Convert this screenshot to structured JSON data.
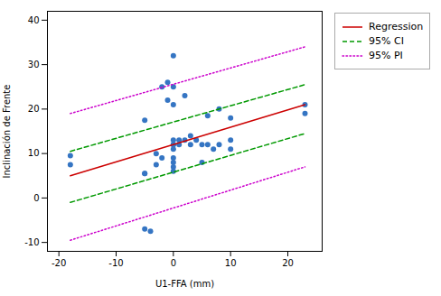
{
  "chart_data": {
    "type": "scatter",
    "xlabel": "U1-FFA (mm)",
    "ylabel": "Inclinación de Frente",
    "xlim": [
      -22,
      26
    ],
    "ylim": [
      -12,
      42
    ],
    "xticks": [
      -20,
      -10,
      0,
      10,
      20
    ],
    "yticks": [
      -10,
      0,
      10,
      20,
      30,
      40
    ],
    "grid": false,
    "legend": "right",
    "series": [
      {
        "type": "scatter",
        "marker": "o",
        "color": "#3575c3",
        "x": [
          -18,
          -18,
          -5,
          -5,
          -5,
          -5,
          -4,
          -3,
          -3,
          -2,
          -2,
          -1,
          -1,
          0,
          0,
          0,
          0,
          0,
          0,
          0,
          0,
          0,
          0,
          0,
          1,
          1,
          2,
          2,
          3,
          3,
          4,
          5,
          5,
          6,
          6,
          7,
          8,
          8,
          10,
          10,
          10,
          23,
          23
        ],
        "values": [
          9.5,
          7.5,
          17.5,
          5.5,
          5.5,
          -7,
          -7.5,
          10,
          7.5,
          9,
          25,
          26,
          22,
          13,
          12,
          12,
          11,
          9,
          8,
          7,
          6,
          32,
          25,
          21,
          13,
          12,
          23,
          13,
          14,
          12,
          13,
          12,
          8,
          18.5,
          12,
          11,
          20,
          12,
          18,
          13,
          11,
          21,
          19
        ]
      },
      {
        "name": "Regression",
        "type": "line",
        "line_style": "solid",
        "color": "#cc0000",
        "x": [
          -18,
          23
        ],
        "values": [
          5.0,
          21.0
        ]
      },
      {
        "name": "95% CI",
        "type": "line",
        "line_style": "dashed",
        "color": "#009900",
        "x": [
          -18,
          23
        ],
        "upper": [
          10.5,
          25.5
        ],
        "lower": [
          -1.0,
          14.5
        ]
      },
      {
        "name": "95% PI",
        "type": "line",
        "line_style": "dotted",
        "color": "#cc00cc",
        "x": [
          -18,
          23
        ],
        "upper": [
          19.0,
          34.0
        ],
        "lower": [
          -9.5,
          7.0
        ]
      }
    ]
  }
}
